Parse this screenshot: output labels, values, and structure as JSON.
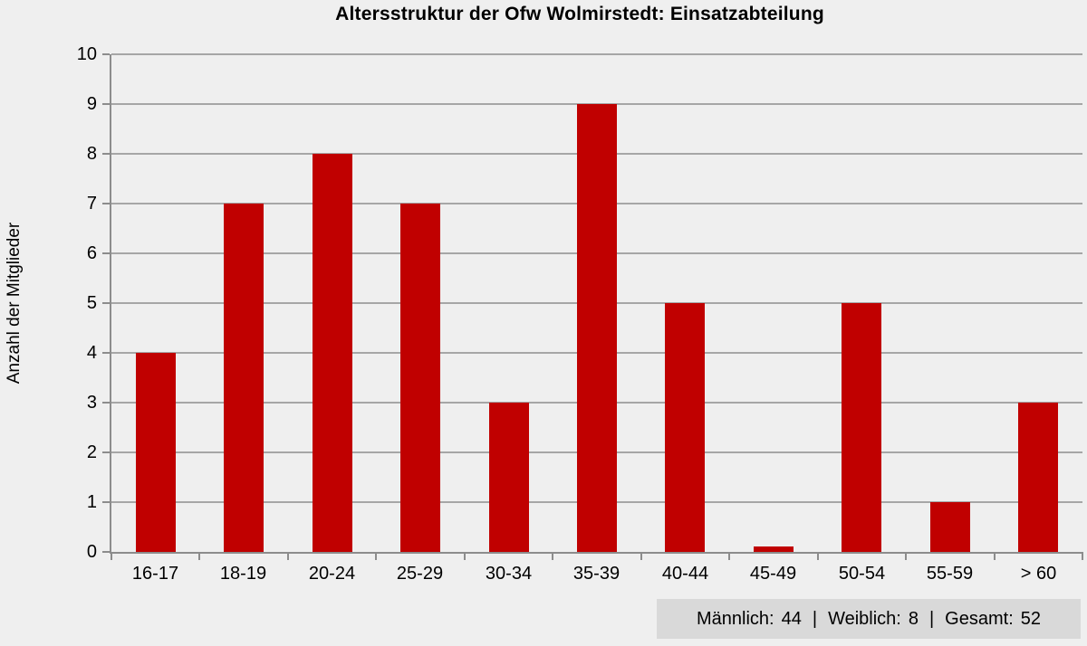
{
  "chart_data": {
    "type": "bar",
    "title": "Altersstruktur der Ofw Wolmirstedt: Einsatzabteilung",
    "xlabel": "",
    "ylabel": "Anzahl der Mitglieder",
    "categories": [
      "16-17",
      "18-19",
      "20-24",
      "25-29",
      "30-34",
      "35-39",
      "40-44",
      "45-49",
      "50-54",
      "55-59",
      "> 60"
    ],
    "values": [
      4,
      7,
      8,
      7,
      3,
      9,
      5,
      0.1,
      5,
      1,
      3
    ],
    "ylim": [
      0,
      10
    ],
    "ytick_step": 1,
    "grid": true,
    "legend": "none",
    "bar_color": "#c00000",
    "background_color": "#efefef",
    "gridline_color": "#a6a6a6",
    "axis_color": "#8c8c8c",
    "text_color": "#000000"
  },
  "summary": {
    "items": [
      {
        "label": "Männlich:",
        "value": "44"
      },
      {
        "label": "Weiblich:",
        "value": "8"
      },
      {
        "label": "Gesamt:",
        "value": "52"
      }
    ],
    "separator": "|",
    "background_color": "#d9d9d9"
  }
}
